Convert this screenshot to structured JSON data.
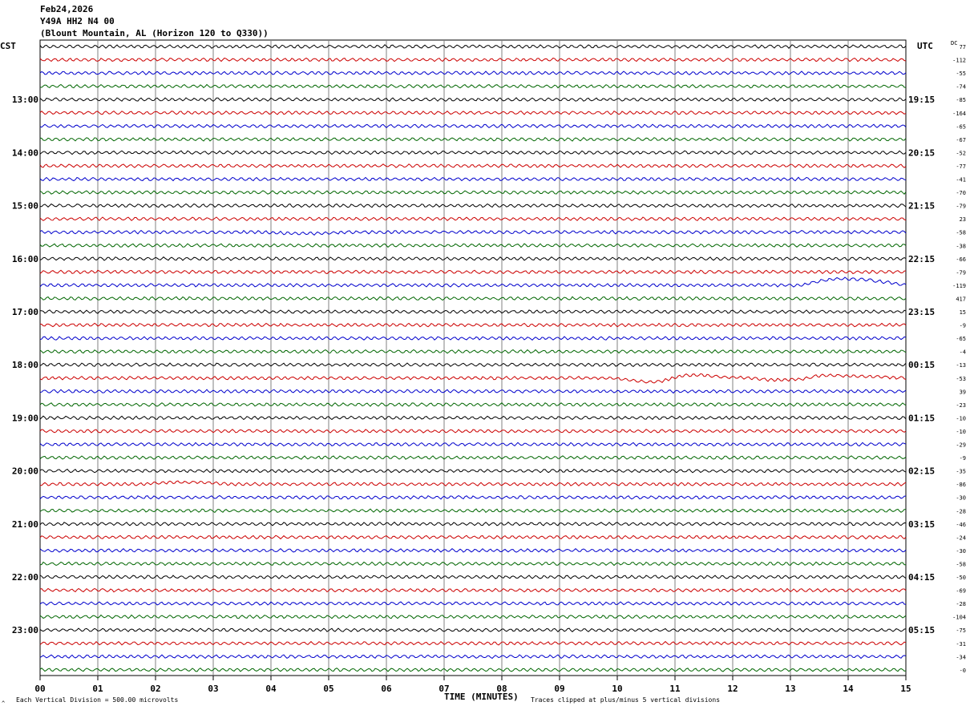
{
  "header": {
    "date": "Feb24,2026",
    "station": "Y49A HH2 N4 00",
    "location": "(Blount Mountain, AL (Horizon 120 to Q330))"
  },
  "labels": {
    "left_zone": "CST",
    "right_zone": "UTC",
    "dc": "DC",
    "xlabel": "TIME (MINUTES)",
    "scale_note": "Each Vertical Division =  500.00 microvolts",
    "clip_note": "Traces clipped at plus/minus 5 vertical divisions",
    "corner_mark": "^"
  },
  "colors": {
    "trace_cycle": [
      "#000000",
      "#cc0000",
      "#0000cc",
      "#006600"
    ],
    "grid": "#808080"
  },
  "chart_data": {
    "type": "line",
    "title": "",
    "xlabel": "TIME (MINUTES)",
    "xlim": [
      0,
      15
    ],
    "x_ticks": [
      "00",
      "01",
      "02",
      "03",
      "04",
      "05",
      "06",
      "07",
      "08",
      "09",
      "10",
      "11",
      "12",
      "13",
      "14",
      "15"
    ],
    "rows": 48,
    "left_hour_labels": [
      "13:00",
      "14:00",
      "15:00",
      "16:00",
      "17:00",
      "18:00",
      "19:00",
      "20:00",
      "21:00",
      "22:00",
      "23:00"
    ],
    "right_hour_labels": [
      "19:15",
      "20:15",
      "21:15",
      "22:15",
      "23:15",
      "00:15",
      "01:15",
      "02:15",
      "03:15",
      "04:15",
      "05:15"
    ],
    "dc_offsets": [
      "77",
      "-112",
      "-55",
      "-74",
      "-85",
      "-164",
      "-65",
      "-67",
      "-52",
      "-77",
      "-41",
      "-70",
      "-79",
      "23",
      "-58",
      "-38",
      "-66",
      "-79",
      "-119",
      "417",
      "15",
      "-9",
      "-65",
      "-4",
      "-13",
      "-53",
      "39",
      "-23",
      "-10",
      "-10",
      "-29",
      "-9",
      "-35",
      "-86",
      "-30",
      "-28",
      "-46",
      "-24",
      "-30",
      "-58",
      "-50",
      "-69",
      "-28",
      "-104",
      "-75",
      "-31",
      "-34",
      "-0"
    ],
    "events": [
      {
        "row": 18,
        "type": "bump",
        "start_min": 13.2,
        "peak_min": 13.9,
        "end_min": 15.0,
        "amp_divs": 1.0
      },
      {
        "row": 25,
        "type": "wave",
        "points_min": [
          9.8,
          10.6,
          11.3,
          12.0,
          12.8,
          13.1,
          13.6,
          14.5,
          15.0
        ],
        "points_divs": [
          0,
          -0.6,
          0.5,
          0.1,
          -0.3,
          -0.2,
          0.4,
          0.2,
          0
        ]
      },
      {
        "row": 33,
        "type": "bump",
        "start_min": 1.8,
        "peak_min": 2.5,
        "end_min": 3.3,
        "amp_divs": 0.3
      },
      {
        "row": 14,
        "type": "dip",
        "start_min": 3.8,
        "peak_min": 4.6,
        "end_min": 5.3,
        "amp_divs": -0.2
      }
    ]
  }
}
